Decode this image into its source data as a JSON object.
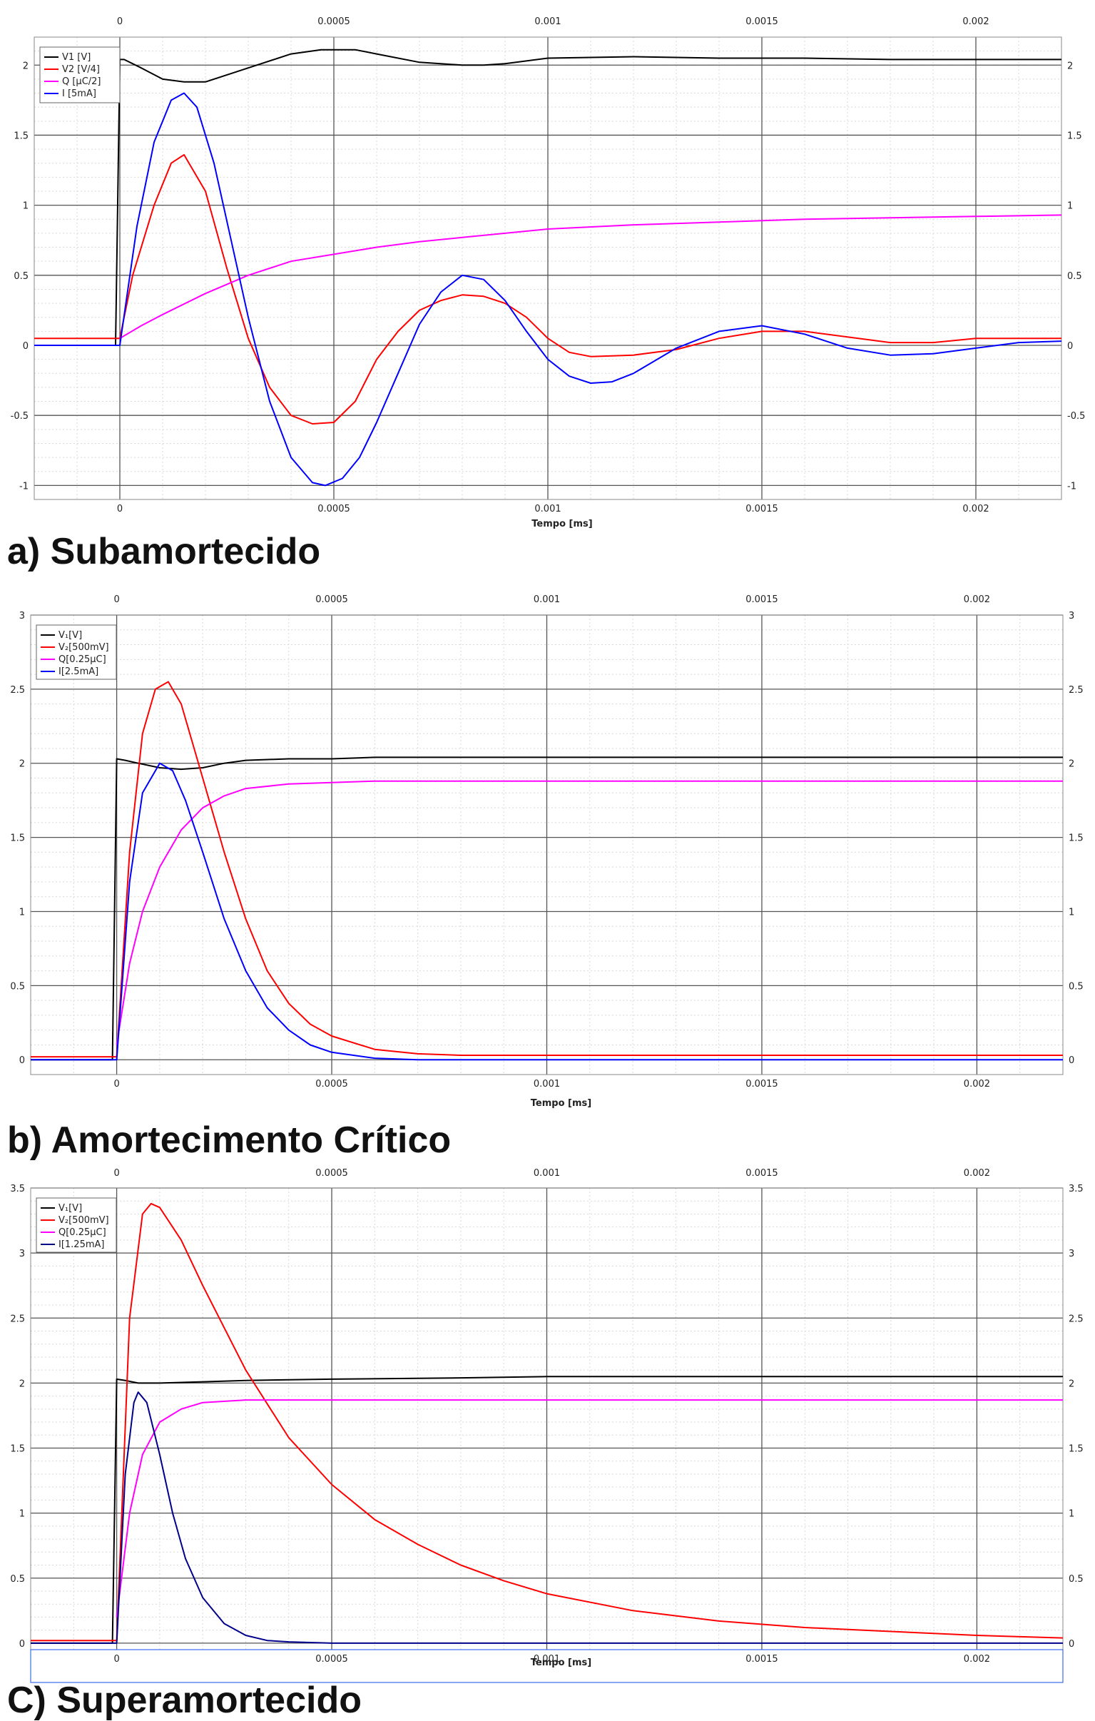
{
  "chart_data": [
    {
      "type": "line",
      "caption": "a) Subamortecido",
      "xlabel": "Tempo [ms]",
      "xlim": [
        -0.0002,
        0.0022
      ],
      "ylim": [
        -1.1,
        2.2
      ],
      "xticks": [
        0,
        0.0005,
        0.001,
        0.0015,
        0.002
      ],
      "xtick_labels": [
        "0",
        "0.0005",
        "0.001",
        "0.0015",
        "0.002"
      ],
      "yticks": [
        -1,
        -0.5,
        0,
        0.5,
        1,
        1.5,
        2
      ],
      "ytick_labels": [
        "-1",
        "-0.5",
        "0",
        "0.5",
        "1",
        "1.5",
        "2"
      ],
      "grid": true,
      "legend_position": "top-left",
      "series": [
        {
          "name": "V1 [V]",
          "color": "#000000",
          "x": [
            -0.0002,
            -1e-05,
            0,
            1e-05,
            5e-05,
            0.0001,
            0.00015,
            0.0002,
            0.0003,
            0.0004,
            0.00047,
            0.0005,
            0.00055,
            0.0006,
            0.0007,
            0.0008,
            0.00085,
            0.0009,
            0.001,
            0.0012,
            0.0014,
            0.0016,
            0.0018,
            0.002,
            0.0022
          ],
          "values": [
            0,
            0,
            2.04,
            2.04,
            1.98,
            1.9,
            1.88,
            1.88,
            1.98,
            2.08,
            2.11,
            2.11,
            2.11,
            2.08,
            2.02,
            2.0,
            2.0,
            2.01,
            2.05,
            2.06,
            2.05,
            2.05,
            2.04,
            2.04,
            2.04
          ]
        },
        {
          "name": "V2 [V/4]",
          "color": "#ff0000",
          "x": [
            -0.0002,
            0,
            3e-05,
            8e-05,
            0.00012,
            0.00015,
            0.0002,
            0.00025,
            0.0003,
            0.00035,
            0.0004,
            0.00045,
            0.0005,
            0.00055,
            0.0006,
            0.00065,
            0.0007,
            0.00075,
            0.0008,
            0.00085,
            0.0009,
            0.00095,
            0.001,
            0.00105,
            0.0011,
            0.0012,
            0.0013,
            0.0014,
            0.0015,
            0.0016,
            0.0017,
            0.0018,
            0.0019,
            0.002,
            0.0021,
            0.0022
          ],
          "values": [
            0.05,
            0.05,
            0.5,
            1.0,
            1.3,
            1.36,
            1.1,
            0.55,
            0.05,
            -0.3,
            -0.5,
            -0.56,
            -0.55,
            -0.4,
            -0.1,
            0.1,
            0.25,
            0.32,
            0.36,
            0.35,
            0.3,
            0.2,
            0.05,
            -0.05,
            -0.08,
            -0.07,
            -0.03,
            0.05,
            0.1,
            0.1,
            0.06,
            0.02,
            0.02,
            0.05,
            0.05,
            0.05
          ]
        },
        {
          "name": "Q [µC/2]",
          "color": "#ff00ff",
          "x": [
            0,
            5e-05,
            0.0001,
            0.0002,
            0.0003,
            0.0004,
            0.0005,
            0.0006,
            0.0007,
            0.0008,
            0.0009,
            0.001,
            0.0012,
            0.0014,
            0.0016,
            0.0018,
            0.002,
            0.0022
          ],
          "values": [
            0.05,
            0.14,
            0.22,
            0.37,
            0.5,
            0.6,
            0.65,
            0.7,
            0.74,
            0.77,
            0.8,
            0.83,
            0.86,
            0.88,
            0.9,
            0.91,
            0.92,
            0.93
          ]
        },
        {
          "name": "I [5mA]",
          "color": "#0000ff",
          "x": [
            -0.0002,
            0,
            4e-05,
            8e-05,
            0.00012,
            0.00015,
            0.00018,
            0.00022,
            0.00026,
            0.0003,
            0.00035,
            0.0004,
            0.00045,
            0.00048,
            0.00052,
            0.00056,
            0.0006,
            0.00065,
            0.0007,
            0.00075,
            0.0008,
            0.00085,
            0.0009,
            0.00095,
            0.001,
            0.00105,
            0.0011,
            0.00115,
            0.0012,
            0.0013,
            0.0014,
            0.0015,
            0.0016,
            0.0017,
            0.0018,
            0.0019,
            0.002,
            0.0021,
            0.0022
          ],
          "values": [
            0,
            0,
            0.85,
            1.45,
            1.75,
            1.8,
            1.7,
            1.3,
            0.75,
            0.2,
            -0.4,
            -0.8,
            -0.98,
            -1.0,
            -0.95,
            -0.8,
            -0.55,
            -0.2,
            0.15,
            0.38,
            0.5,
            0.47,
            0.32,
            0.1,
            -0.1,
            -0.22,
            -0.27,
            -0.26,
            -0.2,
            -0.02,
            0.1,
            0.14,
            0.08,
            -0.02,
            -0.07,
            -0.06,
            -0.02,
            0.02,
            0.03
          ]
        }
      ]
    },
    {
      "type": "line",
      "caption": "b) Amortecimento Crítico",
      "xlabel": "Tempo [ms]",
      "xlim": [
        -0.0002,
        0.0022
      ],
      "ylim": [
        -0.1,
        3.0
      ],
      "xticks": [
        0,
        0.0005,
        0.001,
        0.0015,
        0.002
      ],
      "xtick_labels": [
        "0",
        "0.0005",
        "0.001",
        "0.0015",
        "0.002"
      ],
      "yticks": [
        0,
        0.5,
        1,
        1.5,
        2,
        2.5,
        3
      ],
      "ytick_labels": [
        "0",
        "0.5",
        "1",
        "1.5",
        "2",
        "2.5",
        "3"
      ],
      "grid": true,
      "legend_position": "top-left",
      "series": [
        {
          "name": "V₁[V]",
          "color": "#000000",
          "x": [
            -0.0002,
            -1e-05,
            0,
            2e-05,
            5e-05,
            0.0001,
            0.00015,
            0.0002,
            0.00025,
            0.0003,
            0.0004,
            0.0005,
            0.0006,
            0.0008,
            0.001,
            0.0015,
            0.002,
            0.0022
          ],
          "values": [
            0,
            0,
            2.03,
            2.02,
            2.0,
            1.97,
            1.96,
            1.97,
            2.0,
            2.02,
            2.03,
            2.03,
            2.04,
            2.04,
            2.04,
            2.04,
            2.04,
            2.04
          ]
        },
        {
          "name": "V₂[500mV]",
          "color": "#ff0000",
          "x": [
            -0.0002,
            0,
            3e-05,
            6e-05,
            9e-05,
            0.00012,
            0.00015,
            0.0002,
            0.00025,
            0.0003,
            0.00035,
            0.0004,
            0.00045,
            0.0005,
            0.0006,
            0.0007,
            0.0008,
            0.001,
            0.0015,
            0.002,
            0.0022
          ],
          "values": [
            0.02,
            0.02,
            1.4,
            2.2,
            2.5,
            2.55,
            2.4,
            1.9,
            1.4,
            0.95,
            0.6,
            0.38,
            0.24,
            0.16,
            0.07,
            0.04,
            0.03,
            0.03,
            0.03,
            0.03,
            0.03
          ]
        },
        {
          "name": "Q[0.25µC]",
          "color": "#ff00ff",
          "x": [
            0,
            3e-05,
            6e-05,
            0.0001,
            0.00015,
            0.0002,
            0.00025,
            0.0003,
            0.0004,
            0.0005,
            0.0006,
            0.0008,
            0.001,
            0.0015,
            0.002,
            0.0022
          ],
          "values": [
            0.1,
            0.65,
            1.0,
            1.3,
            1.55,
            1.7,
            1.78,
            1.83,
            1.86,
            1.87,
            1.88,
            1.88,
            1.88,
            1.88,
            1.88,
            1.88
          ]
        },
        {
          "name": "I[2.5mA]",
          "color": "#0000ff",
          "x": [
            -0.0002,
            0,
            3e-05,
            6e-05,
            0.0001,
            0.00013,
            0.00016,
            0.0002,
            0.00025,
            0.0003,
            0.00035,
            0.0004,
            0.00045,
            0.0005,
            0.0006,
            0.0007,
            0.0008,
            0.001,
            0.0015,
            0.002,
            0.0022
          ],
          "values": [
            0,
            0,
            1.2,
            1.8,
            2.0,
            1.95,
            1.75,
            1.4,
            0.95,
            0.6,
            0.35,
            0.2,
            0.1,
            0.05,
            0.01,
            0,
            0,
            0,
            0,
            0,
            0
          ]
        }
      ]
    },
    {
      "type": "line",
      "caption": "C) Superamortecido",
      "xlabel": "Tempo [ms]",
      "xlim": [
        -0.0002,
        0.0022
      ],
      "ylim": [
        -0.05,
        3.5
      ],
      "xticks": [
        0,
        0.0005,
        0.001,
        0.0015,
        0.002
      ],
      "xtick_labels": [
        "0",
        "0.0005",
        "0.001",
        "0.0015",
        "0.002"
      ],
      "yticks": [
        0,
        0.5,
        1,
        1.5,
        2,
        2.5,
        3,
        3.5
      ],
      "ytick_labels": [
        "0",
        "0.5",
        "1",
        "1.5",
        "2",
        "2.5",
        "3",
        "3.5"
      ],
      "grid": true,
      "legend_position": "top-left",
      "series": [
        {
          "name": "V₁[V]",
          "color": "#000000",
          "x": [
            -0.0002,
            -1e-05,
            0,
            2e-05,
            5e-05,
            0.0001,
            0.0002,
            0.0003,
            0.0005,
            0.0008,
            0.001,
            0.0015,
            0.002,
            0.0022
          ],
          "values": [
            0,
            0,
            2.03,
            2.02,
            2.0,
            2.0,
            2.01,
            2.02,
            2.03,
            2.04,
            2.05,
            2.05,
            2.05,
            2.05
          ]
        },
        {
          "name": "V₂[500mV]",
          "color": "#ff0000",
          "x": [
            -0.0002,
            0,
            3e-05,
            6e-05,
            8e-05,
            0.0001,
            0.00015,
            0.0002,
            0.0003,
            0.0004,
            0.0005,
            0.0006,
            0.0007,
            0.0008,
            0.0009,
            0.001,
            0.0012,
            0.0014,
            0.0016,
            0.0018,
            0.002,
            0.0022
          ],
          "values": [
            0.02,
            0.02,
            2.5,
            3.3,
            3.38,
            3.35,
            3.1,
            2.75,
            2.1,
            1.58,
            1.22,
            0.95,
            0.76,
            0.6,
            0.48,
            0.38,
            0.25,
            0.17,
            0.12,
            0.09,
            0.06,
            0.04
          ]
        },
        {
          "name": "Q[0.25µC]",
          "color": "#ff00ff",
          "x": [
            0,
            3e-05,
            6e-05,
            0.0001,
            0.00015,
            0.0002,
            0.0003,
            0.0004,
            0.0005,
            0.001,
            0.0015,
            0.002,
            0.0022
          ],
          "values": [
            0.2,
            1.0,
            1.45,
            1.7,
            1.8,
            1.85,
            1.87,
            1.87,
            1.87,
            1.87,
            1.87,
            1.87,
            1.87
          ]
        },
        {
          "name": "I[1.25mA]",
          "color": "#00008b",
          "x": [
            -0.0002,
            0,
            2e-05,
            4e-05,
            5e-05,
            7e-05,
            0.0001,
            0.00013,
            0.00016,
            0.0002,
            0.00025,
            0.0003,
            0.00035,
            0.0004,
            0.0005,
            0.0006,
            0.001,
            0.0015,
            0.002,
            0.0022
          ],
          "values": [
            0,
            0,
            1.3,
            1.85,
            1.93,
            1.85,
            1.45,
            1.0,
            0.65,
            0.35,
            0.15,
            0.06,
            0.02,
            0.01,
            0,
            0,
            0,
            0,
            0,
            0
          ]
        }
      ]
    }
  ]
}
